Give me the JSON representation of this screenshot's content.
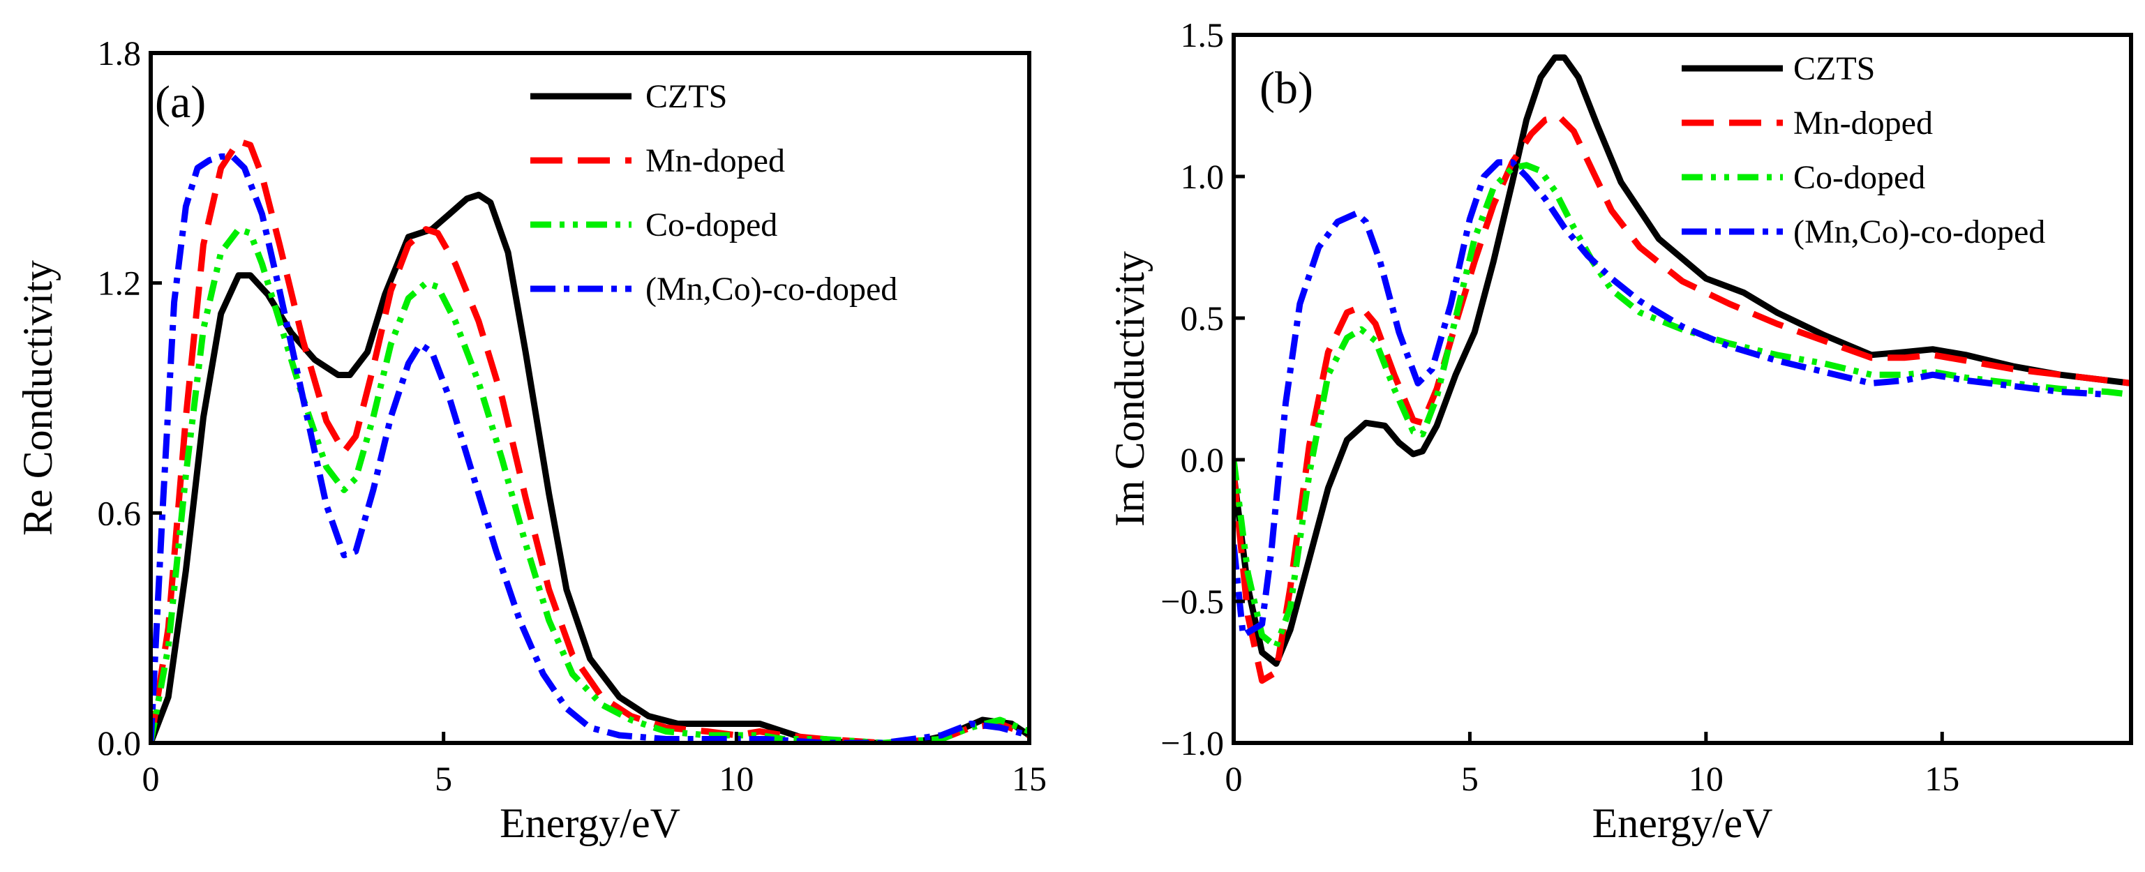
{
  "chart_data": [
    {
      "type": "line",
      "panel_label": "(a)",
      "xlabel": "Energy/eV",
      "ylabel": "Re Conductivity",
      "xlim": [
        0,
        15
      ],
      "ylim": [
        0,
        1.8
      ],
      "xticks": [
        0,
        5,
        10,
        15
      ],
      "yticks": [
        0.0,
        0.6,
        1.2,
        1.8
      ],
      "ytick_labels": [
        "0.0",
        "0.6",
        "1.2",
        "1.8"
      ],
      "legend_position": "top-right",
      "grid": false,
      "series": [
        {
          "name": "CZTS",
          "color": "#000000",
          "style": "solid",
          "x": [
            0,
            0.3,
            0.6,
            0.9,
            1.2,
            1.5,
            1.7,
            2.0,
            2.4,
            2.8,
            3.2,
            3.4,
            3.7,
            4.0,
            4.4,
            4.8,
            5.1,
            5.4,
            5.6,
            5.8,
            6.1,
            6.4,
            6.8,
            7.1,
            7.5,
            8.0,
            8.5,
            9.0,
            9.5,
            10.0,
            10.4,
            10.8,
            11.2,
            12.0,
            13.0,
            13.6,
            14.2,
            14.7,
            15.0
          ],
          "values": [
            0,
            0.12,
            0.45,
            0.85,
            1.12,
            1.22,
            1.22,
            1.17,
            1.07,
            1.0,
            0.96,
            0.96,
            1.02,
            1.17,
            1.32,
            1.34,
            1.38,
            1.42,
            1.43,
            1.41,
            1.28,
            1.02,
            0.65,
            0.4,
            0.22,
            0.12,
            0.07,
            0.05,
            0.05,
            0.05,
            0.05,
            0.03,
            0.01,
            0,
            0,
            0.02,
            0.06,
            0.05,
            0.02
          ]
        },
        {
          "name": "Mn-doped",
          "color": "#ff0000",
          "style": "dashed",
          "x": [
            0,
            0.3,
            0.6,
            0.9,
            1.2,
            1.5,
            1.7,
            1.9,
            2.2,
            2.6,
            3.0,
            3.3,
            3.5,
            3.8,
            4.1,
            4.4,
            4.7,
            4.9,
            5.2,
            5.6,
            6.0,
            6.4,
            6.8,
            7.2,
            7.7,
            8.2,
            8.8,
            9.5,
            10.0,
            10.4,
            10.8,
            11.5,
            12.5,
            13.5,
            14.0,
            14.5,
            15.0
          ],
          "values": [
            0,
            0.3,
            0.85,
            1.3,
            1.5,
            1.57,
            1.56,
            1.48,
            1.3,
            1.05,
            0.84,
            0.76,
            0.8,
            0.98,
            1.18,
            1.3,
            1.34,
            1.33,
            1.25,
            1.1,
            0.9,
            0.64,
            0.4,
            0.23,
            0.12,
            0.07,
            0.04,
            0.03,
            0.02,
            0.03,
            0.02,
            0.01,
            0,
            0.01,
            0.04,
            0.05,
            0.02
          ]
        },
        {
          "name": "Co-doped",
          "color": "#00ee00",
          "style": "dash-dot-dot",
          "x": [
            0,
            0.3,
            0.6,
            0.9,
            1.2,
            1.5,
            1.7,
            1.9,
            2.2,
            2.6,
            3.0,
            3.3,
            3.5,
            3.8,
            4.1,
            4.4,
            4.7,
            4.9,
            5.2,
            5.6,
            6.0,
            6.4,
            6.8,
            7.2,
            7.7,
            8.2,
            8.8,
            9.5,
            10.0,
            10.4,
            10.8,
            11.5,
            12.5,
            13.5,
            14.0,
            14.5,
            15.0
          ],
          "values": [
            0,
            0.25,
            0.7,
            1.08,
            1.28,
            1.34,
            1.33,
            1.25,
            1.1,
            0.9,
            0.72,
            0.66,
            0.69,
            0.85,
            1.04,
            1.16,
            1.2,
            1.19,
            1.1,
            0.94,
            0.74,
            0.52,
            0.32,
            0.18,
            0.1,
            0.06,
            0.03,
            0.02,
            0.02,
            0.02,
            0.01,
            0.01,
            0,
            0.01,
            0.04,
            0.06,
            0.03
          ]
        },
        {
          "name": "(Mn,Co)-co-doped",
          "color": "#0000ff",
          "style": "dash-dot",
          "x": [
            0,
            0.2,
            0.4,
            0.6,
            0.8,
            1.0,
            1.2,
            1.4,
            1.6,
            1.9,
            2.2,
            2.6,
            3.0,
            3.3,
            3.5,
            3.8,
            4.1,
            4.4,
            4.6,
            4.8,
            5.1,
            5.5,
            5.9,
            6.3,
            6.7,
            7.1,
            7.5,
            8.0,
            8.8,
            9.5,
            10.0,
            10.5,
            11.5,
            12.5,
            13.5,
            14.0,
            14.5,
            15.0
          ],
          "values": [
            0,
            0.6,
            1.15,
            1.4,
            1.5,
            1.52,
            1.53,
            1.53,
            1.5,
            1.38,
            1.18,
            0.9,
            0.62,
            0.49,
            0.5,
            0.66,
            0.85,
            0.99,
            1.04,
            1.02,
            0.9,
            0.7,
            0.5,
            0.32,
            0.18,
            0.09,
            0.04,
            0.02,
            0.01,
            0.01,
            0.01,
            0.01,
            0,
            0,
            0.02,
            0.05,
            0.04,
            0.02
          ]
        }
      ]
    },
    {
      "type": "line",
      "panel_label": "(b)",
      "xlabel": "Energy/eV",
      "ylabel": "Im Conductivity",
      "xlim": [
        0,
        19
      ],
      "ylim": [
        -1.0,
        1.5
      ],
      "xticks": [
        0,
        5,
        10,
        15
      ],
      "yticks": [
        -1.0,
        -0.5,
        0.0,
        0.5,
        1.0,
        1.5
      ],
      "ytick_labels": [
        "−1.0",
        "−0.5",
        "0.0",
        "0.5",
        "1.0",
        "1.5"
      ],
      "legend_position": "top-right",
      "grid": false,
      "series": [
        {
          "name": "CZTS",
          "color": "#000000",
          "style": "solid",
          "x": [
            0,
            0.3,
            0.6,
            0.9,
            1.2,
            1.6,
            2.0,
            2.4,
            2.8,
            3.2,
            3.5,
            3.8,
            4.0,
            4.3,
            4.7,
            5.1,
            5.5,
            5.9,
            6.2,
            6.5,
            6.8,
            7.0,
            7.3,
            7.7,
            8.2,
            9.0,
            10.0,
            10.8,
            11.5,
            12.5,
            13.5,
            14.2,
            14.8,
            15.5,
            16.5,
            17.5,
            18.5,
            19.0
          ],
          "values": [
            -0.05,
            -0.45,
            -0.68,
            -0.72,
            -0.6,
            -0.35,
            -0.1,
            0.07,
            0.13,
            0.12,
            0.06,
            0.02,
            0.03,
            0.12,
            0.3,
            0.45,
            0.7,
            0.98,
            1.2,
            1.35,
            1.42,
            1.42,
            1.35,
            1.18,
            0.98,
            0.78,
            0.64,
            0.59,
            0.52,
            0.44,
            0.37,
            0.38,
            0.39,
            0.37,
            0.33,
            0.3,
            0.28,
            0.27
          ]
        },
        {
          "name": "Mn-doped",
          "color": "#ff0000",
          "style": "dashed",
          "x": [
            0,
            0.3,
            0.6,
            0.9,
            1.2,
            1.6,
            2.0,
            2.4,
            2.7,
            3.0,
            3.4,
            3.8,
            4.0,
            4.3,
            4.7,
            5.1,
            5.5,
            5.9,
            6.3,
            6.6,
            6.9,
            7.2,
            7.6,
            8.0,
            8.6,
            9.5,
            10.5,
            11.5,
            12.5,
            13.5,
            14.2,
            14.8,
            15.5,
            16.5,
            17.5,
            18.5,
            19.0
          ],
          "values": [
            -0.05,
            -0.55,
            -0.78,
            -0.75,
            -0.45,
            0.05,
            0.38,
            0.52,
            0.54,
            0.48,
            0.3,
            0.14,
            0.13,
            0.25,
            0.48,
            0.7,
            0.9,
            1.05,
            1.15,
            1.2,
            1.21,
            1.16,
            1.02,
            0.88,
            0.75,
            0.63,
            0.55,
            0.48,
            0.42,
            0.36,
            0.36,
            0.37,
            0.35,
            0.32,
            0.3,
            0.28,
            0.27
          ]
        },
        {
          "name": "Co-doped",
          "color": "#00ee00",
          "style": "dash-dot-dot",
          "x": [
            0,
            0.3,
            0.6,
            0.9,
            1.2,
            1.6,
            2.0,
            2.4,
            2.7,
            3.0,
            3.4,
            3.8,
            4.0,
            4.3,
            4.7,
            5.1,
            5.5,
            5.9,
            6.2,
            6.5,
            6.8,
            7.2,
            7.6,
            8.0,
            8.6,
            9.5,
            10.5,
            11.5,
            12.5,
            13.5,
            14.2,
            14.8,
            15.5,
            16.5,
            17.5,
            18.5,
            19.0
          ],
          "values": [
            0,
            -0.4,
            -0.62,
            -0.66,
            -0.52,
            -0.05,
            0.3,
            0.43,
            0.46,
            0.42,
            0.25,
            0.1,
            0.09,
            0.22,
            0.5,
            0.78,
            0.96,
            1.03,
            1.04,
            1.02,
            0.95,
            0.82,
            0.7,
            0.6,
            0.52,
            0.46,
            0.41,
            0.37,
            0.34,
            0.3,
            0.3,
            0.31,
            0.29,
            0.27,
            0.25,
            0.24,
            0.23
          ]
        },
        {
          "name": "(Mn,Co)-co-doped",
          "color": "#0000ff",
          "style": "dash-dot",
          "x": [
            0,
            0.2,
            0.4,
            0.6,
            0.8,
            1.1,
            1.4,
            1.8,
            2.2,
            2.6,
            2.8,
            3.1,
            3.5,
            3.9,
            4.2,
            4.6,
            5.0,
            5.3,
            5.6,
            5.9,
            6.2,
            6.6,
            7.0,
            7.5,
            8.0,
            8.6,
            9.5,
            10.5,
            11.5,
            12.5,
            13.5,
            14.2,
            14.8,
            15.5,
            16.5,
            17.5,
            18.5
          ],
          "values": [
            -0.3,
            -0.62,
            -0.6,
            -0.58,
            -0.32,
            0.2,
            0.55,
            0.75,
            0.84,
            0.87,
            0.84,
            0.7,
            0.45,
            0.27,
            0.32,
            0.55,
            0.85,
            1.0,
            1.05,
            1.05,
            1.0,
            0.92,
            0.82,
            0.72,
            0.64,
            0.56,
            0.47,
            0.4,
            0.35,
            0.31,
            0.27,
            0.28,
            0.3,
            0.28,
            0.26,
            0.24,
            0.23
          ]
        }
      ]
    }
  ]
}
